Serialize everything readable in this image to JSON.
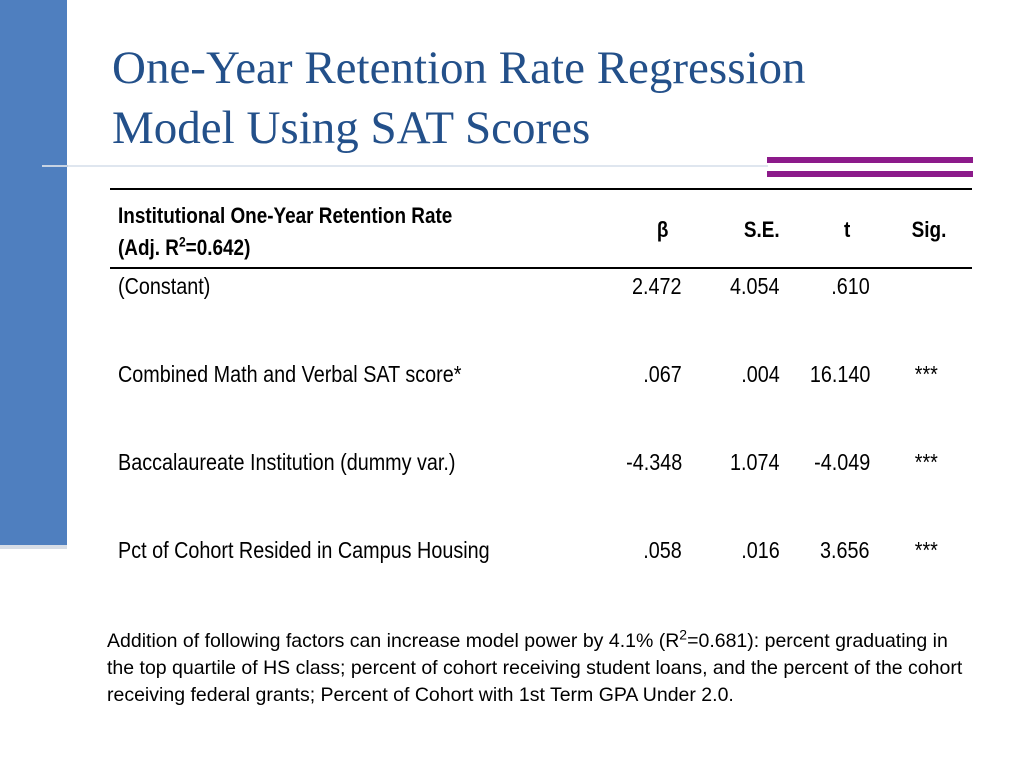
{
  "slide": {
    "title_line1": "One-Year Retention Rate Regression",
    "title_line2": "Model Using SAT Scores"
  },
  "table": {
    "header": {
      "label_line1": "Institutional One-Year Retention Rate",
      "label_line2_prefix": "(Adj. R",
      "label_line2_sup": "2",
      "label_line2_suffix": "=0.642)",
      "beta": "β",
      "se": "S.E.",
      "t": "t",
      "sig": "Sig."
    },
    "rows": [
      {
        "label": "(Constant)",
        "beta": "2.472",
        "se": "4.054",
        "t": ".610",
        "sig": ""
      },
      {
        "label": "Combined Math and Verbal SAT score*",
        "beta": ".067",
        "se": ".004",
        "t": "16.140",
        "sig": "***"
      },
      {
        "label": "Baccalaureate Institution (dummy var.)",
        "beta": "-4.348",
        "se": "1.074",
        "t": "-4.049",
        "sig": "***"
      },
      {
        "label": "Pct of Cohort Resided in Campus Housing",
        "beta": ".058",
        "se": ".016",
        "t": "3.656",
        "sig": "***"
      }
    ]
  },
  "note": {
    "text_prefix": "Addition of following factors can increase model power by 4.1% (R",
    "text_sup": "2",
    "text_suffix": "=0.681): percent graduating  in the top quartile of HS class; percent of cohort receiving student loans, and the percent of the cohort receiving federal grants; Percent of Cohort with 1st Term GPA Under 2.0."
  },
  "colors": {
    "side_bar": "#4f7fbf",
    "title": "#23508a",
    "accent": "#8c1a8a"
  }
}
